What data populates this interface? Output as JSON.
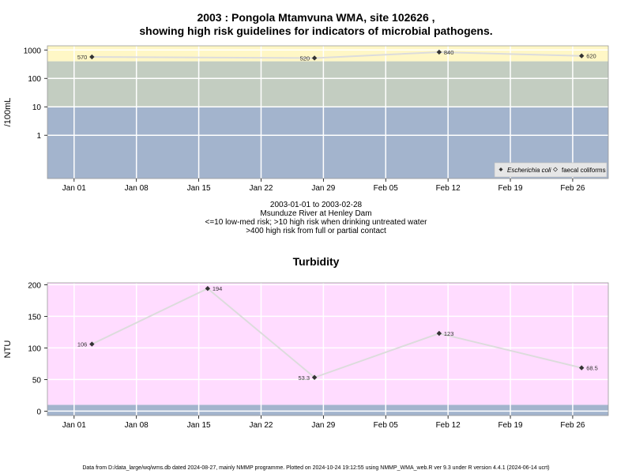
{
  "title_line1": "2003 : Pongola Mtamvuna WMA, site 102626 ,",
  "title_line2": "showing high risk guidelines for indicators of microbial pathogens.",
  "caption": {
    "line1": "2003-01-01 to 2003-02-28",
    "line2": "Msunduze River at Henley Dam",
    "line3": "<=10 low-med risk; >10 high risk when drinking untreated water",
    "line4": ">400 high risk from full or partial contact"
  },
  "turbidity_title": "Turbidity",
  "footer": "Data from D:/data_large/wq/wms.db dated 2024-08-27, mainly NMMP programme. Plotted on 2024-10-24 19:12:55 using NMMP_WMA_web.R ver 9.3 under R version 4.4.1 (2024-06-14 ucrt)",
  "colors": {
    "low_band": "#a3b4cd",
    "mid_band": "#c3cdc1",
    "high_band": "#fff7c6",
    "turbidity_bg": "#ffdcff",
    "turbidity_low_band": "#a3b4cd",
    "line": "#dcdcdc",
    "marker": "#333333",
    "grid": "#ffffff"
  },
  "x_ticks": [
    "Jan 01",
    "Jan 08",
    "Jan 15",
    "Jan 22",
    "Jan 29",
    "Feb 05",
    "Feb 12",
    "Feb 19",
    "Feb 26"
  ],
  "chart_data": [
    {
      "type": "scatter",
      "ylabel": "/100mL",
      "y_scale": "log",
      "y_ticks": [
        "1",
        "10",
        "100",
        "1000"
      ],
      "x_range": [
        "2002-12-29",
        "2003-03-02"
      ],
      "bands": [
        {
          "from": 0.03,
          "to": 10,
          "color": "#a3b4cd"
        },
        {
          "from": 10,
          "to": 400,
          "color": "#c3cdc1"
        },
        {
          "from": 400,
          "to": 1400,
          "color": "#fff7c6"
        }
      ],
      "series": [
        {
          "name": "Escherichia coli",
          "x": [
            "2003-01-03",
            "2003-01-28",
            "2003-02-11",
            "2003-02-27"
          ],
          "values": [
            570,
            520,
            840,
            620
          ],
          "labels": [
            "570",
            "520",
            "840",
            "620"
          ]
        }
      ],
      "legend": {
        "placement": "bottom-right",
        "entries": [
          "Escherichia coli",
          "faecal coliforms"
        ]
      }
    },
    {
      "type": "line",
      "title": "Turbidity",
      "ylabel": "NTU",
      "y_ticks": [
        "0",
        "50",
        "100",
        "150",
        "200"
      ],
      "ylim": [
        -7,
        203
      ],
      "x_range": [
        "2002-12-29",
        "2003-03-02"
      ],
      "bands": [
        {
          "from": -7,
          "to": 10,
          "color": "#a3b4cd"
        },
        {
          "from": 10,
          "to": 203,
          "color": "#ffdcff"
        }
      ],
      "series": [
        {
          "x": [
            "2003-01-03",
            "2003-01-16",
            "2003-01-28",
            "2003-02-11",
            "2003-02-27"
          ],
          "values": [
            106,
            194,
            53.3,
            123,
            68.5
          ],
          "labels": [
            "106",
            "194",
            "53.3",
            "123",
            "68.5"
          ]
        }
      ]
    }
  ]
}
